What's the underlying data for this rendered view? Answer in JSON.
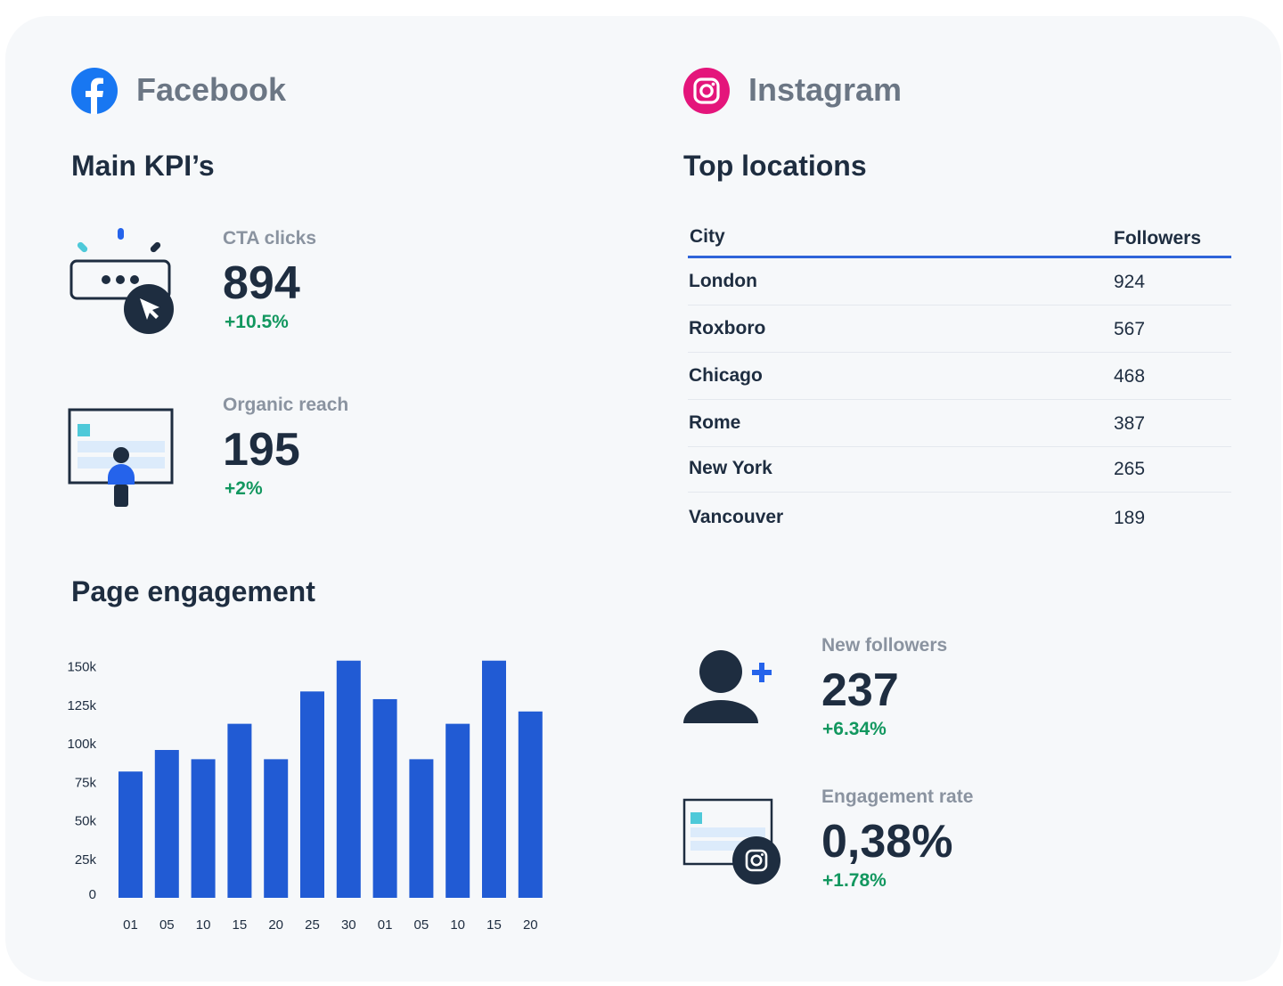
{
  "facebook": {
    "brand": "Facebook",
    "brand_color": "#1877f2",
    "kpi_title": "Main KPI’s",
    "kpis": [
      {
        "label": "CTA clicks",
        "value": "894",
        "delta": "+10.5%",
        "icon": "cta-click-icon"
      },
      {
        "label": "Organic reach",
        "value": "195",
        "delta": "+2%",
        "icon": "organic-reach-icon"
      }
    ],
    "engagement_title": "Page engagement"
  },
  "instagram": {
    "brand": "Instagram",
    "brand_color": "#e4157b",
    "locations_title": "Top locations",
    "table": {
      "headers": [
        "City",
        "Followers"
      ],
      "rows": [
        [
          "London",
          "924"
        ],
        [
          "Roxboro",
          "567"
        ],
        [
          "Chicago",
          "468"
        ],
        [
          "Rome",
          "387"
        ],
        [
          "New York",
          "265"
        ],
        [
          "Vancouver",
          "189"
        ]
      ]
    },
    "kpis": [
      {
        "label": "New followers",
        "value": "237",
        "delta": "+6.34%",
        "icon": "add-user-icon"
      },
      {
        "label": "Engagement rate",
        "value": "0,38%",
        "delta": "+1.78%",
        "icon": "instagram-post-icon"
      }
    ]
  },
  "colors": {
    "bar": "#215bd4",
    "positive": "#12975f",
    "accent_line": "#2f64d9"
  },
  "chart_data": {
    "type": "bar",
    "categories": [
      "01",
      "05",
      "10",
      "15",
      "20",
      "25",
      "30",
      "01",
      "05",
      "10",
      "15",
      "20"
    ],
    "values": [
      82000,
      96000,
      90000,
      113000,
      90000,
      134000,
      154000,
      129000,
      90000,
      113000,
      154000,
      121000
    ],
    "yticks": [
      0,
      25000,
      50000,
      75000,
      100000,
      125000,
      150000
    ],
    "ytick_labels": [
      "0",
      "25k",
      "50k",
      "75k",
      "100k",
      "125k",
      "150k"
    ],
    "ylim": [
      0,
      155000
    ],
    "grid": false,
    "title": "",
    "xlabel": "",
    "ylabel": ""
  }
}
